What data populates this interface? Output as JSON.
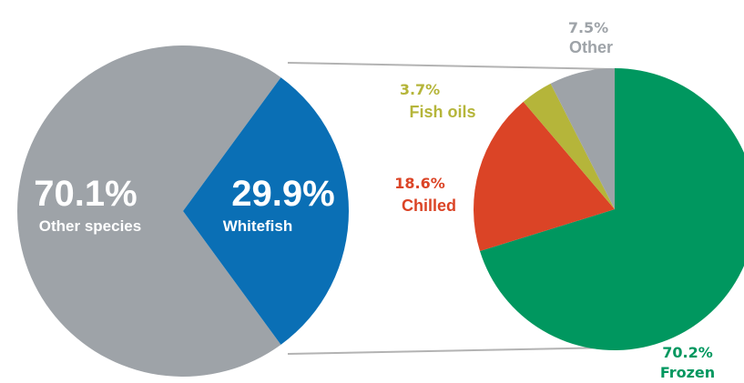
{
  "chart_data": [
    {
      "type": "pie",
      "slices": [
        {
          "label": "Other species",
          "value": 70.1,
          "value_label": "70.1%",
          "color": "#9ea3a8",
          "label_color": "#ffffff"
        },
        {
          "label": "Whitefish",
          "value": 29.9,
          "value_label": "29.9%",
          "color": "#0a6fb5",
          "label_color": "#ffffff"
        }
      ]
    },
    {
      "type": "pie",
      "breakdown_of": "Whitefish",
      "slices": [
        {
          "label": "Frozen",
          "value": 70.2,
          "value_label": "70.2%",
          "color": "#00975f",
          "label_color": "#00975f"
        },
        {
          "label": "Chilled",
          "value": 18.6,
          "value_label": "18.6%",
          "color": "#db4426",
          "label_color": "#db4426"
        },
        {
          "label": "Fish oils",
          "value": 3.7,
          "value_label": "3.7%",
          "color": "#b5b53a",
          "label_color": "#b5b53a"
        },
        {
          "label": "Other",
          "value": 7.5,
          "value_label": "7.5%",
          "color": "#9ea3a8",
          "label_color": "#9ea3a8"
        }
      ]
    }
  ]
}
